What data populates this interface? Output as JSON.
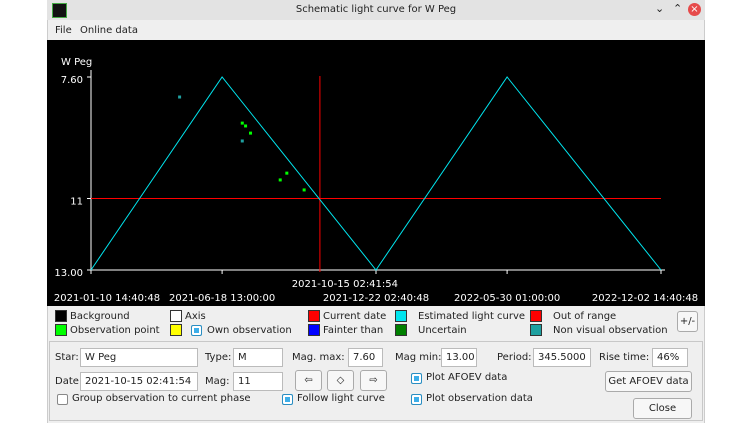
{
  "window": {
    "title": "Schematic light curve for W Peg"
  },
  "menu": [
    "File",
    "Online data"
  ],
  "chart_data": {
    "type": "line",
    "y_label": "W Peg",
    "xlim": [
      "2021-01-10 14:40:48",
      "2022-12-02 14:40:48"
    ],
    "xticks": [
      "2021-01-10 14:40:48",
      "2021-06-18 13:00:00",
      "2021-12-22 02:40:48",
      "2022-05-30 01:00:00",
      "2022-12-02 14:40:48"
    ],
    "ylim": [
      13.0,
      7.6
    ],
    "yticks": [
      {
        "value": 7.6,
        "label": "7.60"
      },
      11,
      {
        "value": 13.0,
        "label": "13.00"
      }
    ],
    "current_date": "2021-10-15 02:41:54",
    "current_mag": 11,
    "current_color": "#ff0000",
    "series": [
      {
        "name": "Estimated light curve",
        "color": "#00e5ee",
        "mode": "line",
        "x": [
          "2021-01-10 14:40:48",
          "2021-06-18 13:00:00",
          "2021-12-22 02:40:48",
          "2022-05-30 01:00:00",
          "2022-12-02 14:40:48"
        ],
        "values": [
          13.0,
          7.6,
          13.0,
          7.6,
          13.0
        ]
      },
      {
        "name": "Observation point",
        "color": "#00ff00",
        "mode": "points",
        "x": [
          "2021-07-13",
          "2021-07-17",
          "2021-07-23",
          "2021-09-05",
          "2021-08-28",
          "2021-09-26"
        ],
        "values": [
          8.89,
          8.97,
          9.17,
          10.29,
          10.48,
          10.76
        ]
      },
      {
        "name": "Non visual observation",
        "color": "#1fa0a0",
        "mode": "points",
        "x": [
          "2021-04-28",
          "2021-07-13"
        ],
        "values": [
          8.16,
          9.39
        ]
      }
    ],
    "legend": [
      {
        "label": "Background",
        "color": "#000000"
      },
      {
        "label": "Axis",
        "color": "#ffffff"
      },
      {
        "label": "Current date",
        "color": "#ff0000"
      },
      {
        "label": "Out of range",
        "color": "#ff0000"
      },
      {
        "label": "Own observation",
        "color": "#ffff00",
        "checked": true
      },
      {
        "label": "Fainter than",
        "color": "#0000ff"
      },
      {
        "label": "Uncertain",
        "color": "#008000"
      }
    ]
  },
  "toggle_button": "+/-",
  "form": {
    "star": {
      "label": "Star:",
      "value": "W Peg"
    },
    "type": {
      "label": "Type:",
      "value": "M"
    },
    "mag_max": {
      "label": "Mag. max:",
      "value": "7.60"
    },
    "mag_min": {
      "label": "Mag min:",
      "value": "13.00"
    },
    "period": {
      "label": "Period:",
      "value": "345.5000"
    },
    "rise_time": {
      "label": "Rise time:",
      "value": "46%"
    },
    "date": {
      "label": "Date:",
      "value": "2021-10-15 02:41:54"
    },
    "mag": {
      "label": "Mag:",
      "value": "11"
    },
    "plot_afoev": {
      "label": "Plot AFOEV data",
      "checked": true
    },
    "get_afoev": "Get AFOEV data",
    "group_phase": {
      "label": "Group observation to current phase",
      "checked": false
    },
    "follow_curve": {
      "label": "Follow light curve",
      "checked": true
    },
    "plot_obs": {
      "label": "Plot observation data",
      "checked": true
    },
    "close": "Close"
  }
}
